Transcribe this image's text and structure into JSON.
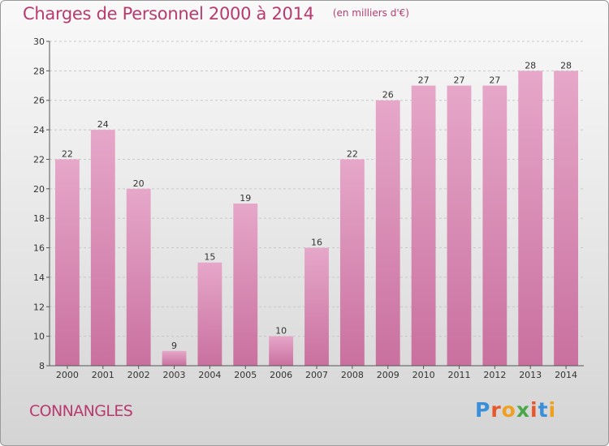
{
  "header": {
    "title": "Charges de Personnel 2000 à 2014",
    "subtitle": "(en milliers d'€)"
  },
  "footer": {
    "commune": "CONNANGLES",
    "brand": "Proxiti",
    "brand_colors": [
      "#3a8fd8",
      "#e8572a",
      "#f0a020",
      "#4aa84a",
      "#e8572a",
      "#3a8fd8",
      "#f0a020"
    ]
  },
  "colors": {
    "bar": "#c9709f",
    "bar_light": "#e6a7c9",
    "accent": "#b83a6e"
  },
  "chart_data": {
    "type": "bar",
    "title": "Charges de Personnel 2000 à 2014",
    "subtitle": "(en milliers d'€)",
    "categories": [
      "2000",
      "2001",
      "2002",
      "2003",
      "2004",
      "2005",
      "2006",
      "2007",
      "2008",
      "2009",
      "2010",
      "2011",
      "2012",
      "2013",
      "2014"
    ],
    "values": [
      22,
      24,
      20,
      9,
      15,
      19,
      10,
      16,
      22,
      26,
      27,
      27,
      27,
      28,
      28
    ],
    "ylim": [
      8,
      30
    ],
    "yticks": [
      8,
      10,
      12,
      14,
      16,
      18,
      20,
      22,
      24,
      26,
      28,
      30
    ],
    "xlabel": "",
    "ylabel": "",
    "grid": true,
    "data_labels": true
  }
}
